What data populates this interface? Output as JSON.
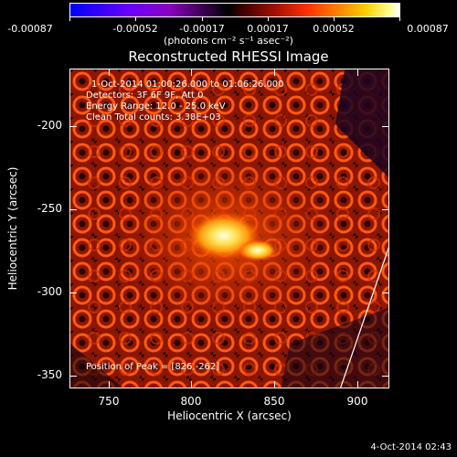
{
  "colorbar": {
    "ticks": [
      "-0.00087",
      "-0.00052",
      "-0.00017",
      "0.00017",
      "0.00052",
      "0.00087"
    ],
    "units": "(photons cm⁻² s⁻¹ asec⁻²)"
  },
  "title": "Reconstructed RHESSI Image",
  "info": {
    "time": "1-Oct-2014 01:00:26.000 to 01:06:26.000",
    "detectors": "Detectors: 3F 6F 9F, Att 0",
    "energy": "Energy Range: 12.0 - 25.0 keV",
    "clean": "Clean    Total counts: 3.38E+03",
    "peak": "Position of Peak = [826,-262]"
  },
  "axes": {
    "xlabel": "Heliocentric X (arcsec)",
    "ylabel": "Heliocentric Y (arcsec)",
    "xticks": [
      "750",
      "800",
      "850",
      "900"
    ],
    "yticks": [
      "-200",
      "-250",
      "-300",
      "-350"
    ]
  },
  "footer_date": "4-Oct-2014 02:43",
  "colors": {
    "background": "#000000",
    "foreground": "#ffffff",
    "map_base": "#7a0f00"
  }
}
